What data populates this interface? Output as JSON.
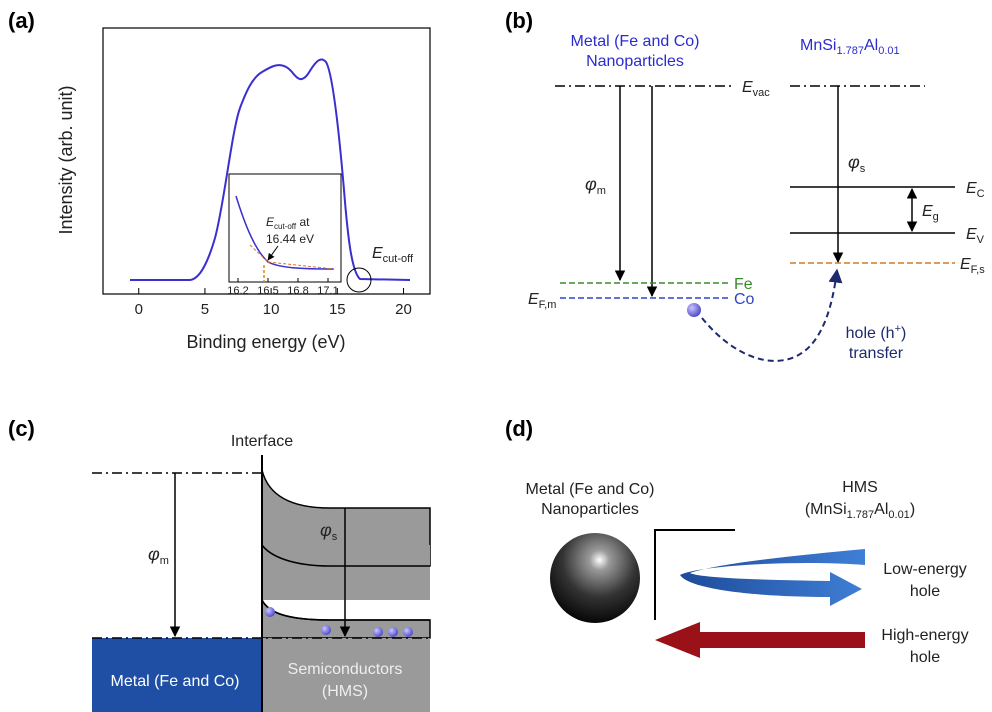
{
  "chart_data": [
    {
      "type": "line",
      "label": "(a)",
      "ylabel": "Intensity (arb. unit)",
      "xlabel": "Binding energy (eV)",
      "xlim": [
        -2.7,
        22
      ],
      "xticks": [
        0,
        5,
        10,
        15,
        20
      ],
      "annotation": {
        "base": "E",
        "sub": "cut-off"
      }
    },
    {
      "type": "line",
      "xlim": [
        16.11,
        17.23
      ],
      "xticks": [
        16.2,
        16.5,
        16.8,
        17.1
      ],
      "annotation": {
        "base": "E",
        "sub": "cut-off",
        "rest": " at",
        "value": "16.44 eV"
      }
    }
  ],
  "panels": {
    "b": {
      "label": "(b)",
      "metal": [
        "Metal (Fe and Co)",
        "Nanoparticles"
      ],
      "hms": [
        "MnSi",
        "1.787",
        "Al",
        "0.01"
      ],
      "evac": {
        "base": "E",
        "sub": "vac"
      },
      "phi_m": {
        "base": "φ",
        "sub": "m"
      },
      "phi_s": {
        "base": "φ",
        "sub": "s"
      },
      "ec": {
        "base": "E",
        "sub": "C"
      },
      "ev": {
        "base": "E",
        "sub": "V"
      },
      "eg": {
        "base": "E",
        "sub": "g"
      },
      "efs": {
        "base": "E",
        "sub": "F,s"
      },
      "efm": {
        "base": "E",
        "sub": "F,m"
      },
      "fe": "Fe",
      "co": "Co",
      "hole": [
        "hole (h",
        "+",
        ")"
      ],
      "transfer": "transfer"
    },
    "c": {
      "label": "(c)",
      "interface": "Interface",
      "phi_m": {
        "base": "φ",
        "sub": "m"
      },
      "phi_s": {
        "base": "φ",
        "sub": "s"
      },
      "metal": "Metal (Fe and Co)",
      "semi": [
        "Semiconductors",
        "(HMS)"
      ]
    },
    "d": {
      "label": "(d)",
      "metal": [
        "Metal (Fe and Co)",
        "Nanoparticles"
      ],
      "hms": "HMS",
      "hms_formula": [
        "(MnSi",
        "1.787",
        "Al",
        "0.01",
        ")"
      ],
      "low": [
        "Low-energy",
        "hole"
      ],
      "high": [
        "High-energy",
        "hole"
      ]
    }
  }
}
